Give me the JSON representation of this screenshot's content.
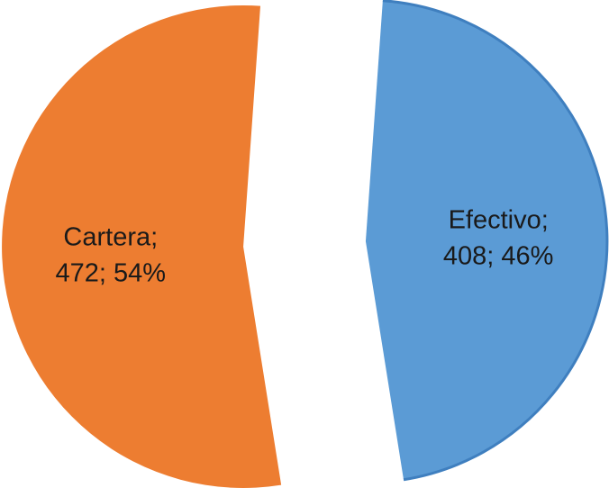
{
  "chart_data": {
    "type": "pie",
    "exploded": true,
    "label_separator": "; ",
    "slices": [
      {
        "name": "Efectivo",
        "value": 408,
        "percent": "46%",
        "color": "#5b9bd5",
        "label_line1": "Efectivo;",
        "label_line2": "408; 46%"
      },
      {
        "name": "Cartera",
        "value": 472,
        "percent": "54%",
        "color": "#ed7d31",
        "label_line1": "Cartera;",
        "label_line2": "472; 54%"
      }
    ]
  }
}
